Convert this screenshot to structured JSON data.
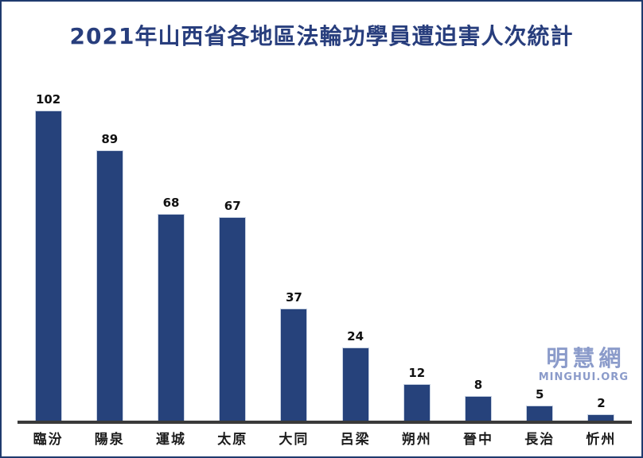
{
  "title": "2021年山西省各地區法輪功學員遭迫害人次統計",
  "watermark": {
    "name": "明慧網",
    "site": "MINGHUI.ORG"
  },
  "colors": {
    "bar": "#26427b",
    "frame_border": "#1f3a6e",
    "title_text": "#283e7d",
    "axis_line": "#3a3a3a",
    "value_label": "#111111",
    "x_label": "#1c1c1c",
    "watermark": "#8b9bca",
    "background": "#ffffff"
  },
  "chart_data": {
    "type": "bar",
    "title": "2021年山西省各地區法輪功學員遭迫害人次統計",
    "categories": [
      "臨汾",
      "陽泉",
      "運城",
      "太原",
      "大同",
      "呂梁",
      "朔州",
      "晉中",
      "長治",
      "忻州"
    ],
    "values": [
      102,
      89,
      68,
      67,
      37,
      24,
      12,
      8,
      5,
      2
    ],
    "xlabel": "",
    "ylabel": "",
    "ylim": [
      0,
      110
    ],
    "grid": false,
    "legend": false,
    "data_labels": true,
    "orientation": "vertical"
  }
}
